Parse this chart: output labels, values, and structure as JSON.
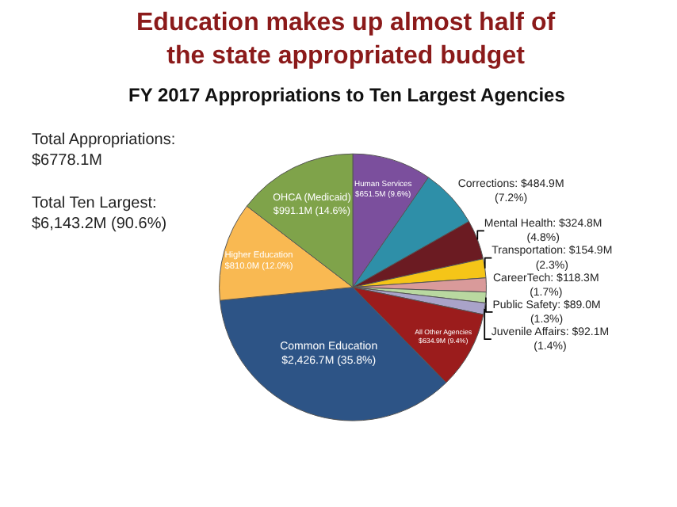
{
  "chart_data": {
    "type": "pie",
    "title": "Education makes up almost half of the state appropriated budget",
    "subtitle": "FY 2017 Appropriations to Ten Largest Agencies",
    "categories": [
      "Human Services",
      "Corrections",
      "Mental Health",
      "Transportation",
      "CareerTech",
      "Public Safety",
      "Juvenile Affairs",
      "All Other Agencies",
      "Common Education",
      "Higher Education",
      "OHCA (Medicaid)"
    ],
    "values": [
      9.6,
      7.2,
      4.8,
      2.3,
      1.7,
      1.3,
      1.4,
      9.4,
      35.8,
      12.0,
      14.6
    ],
    "value_labels": [
      "$651.5M (9.6%)",
      "$484.9M (7.2%)",
      "$324.8M (4.8%)",
      "$154.9M (2.3%)",
      "$118.3M (1.7%)",
      "$89.0M (1.3%)",
      "$92.1M (1.4%)",
      "$634.9M (9.4%)",
      "$2,426.7M (35.8%)",
      "$810.0M (12.0%)",
      "$991.1M (14.6%)"
    ],
    "colors": [
      "#7b4f9d",
      "#2e8fa8",
      "#6b1b22",
      "#f5c518",
      "#d99a9a",
      "#b9d8a0",
      "#a9a3c9",
      "#9b1c1c",
      "#2d5486",
      "#f9b952",
      "#7fa34a"
    ],
    "annotations": [
      "Total Appropriations: $6778.1M",
      "Total Ten Largest: $6,143.2M (90.6%)"
    ],
    "legend": false
  }
}
